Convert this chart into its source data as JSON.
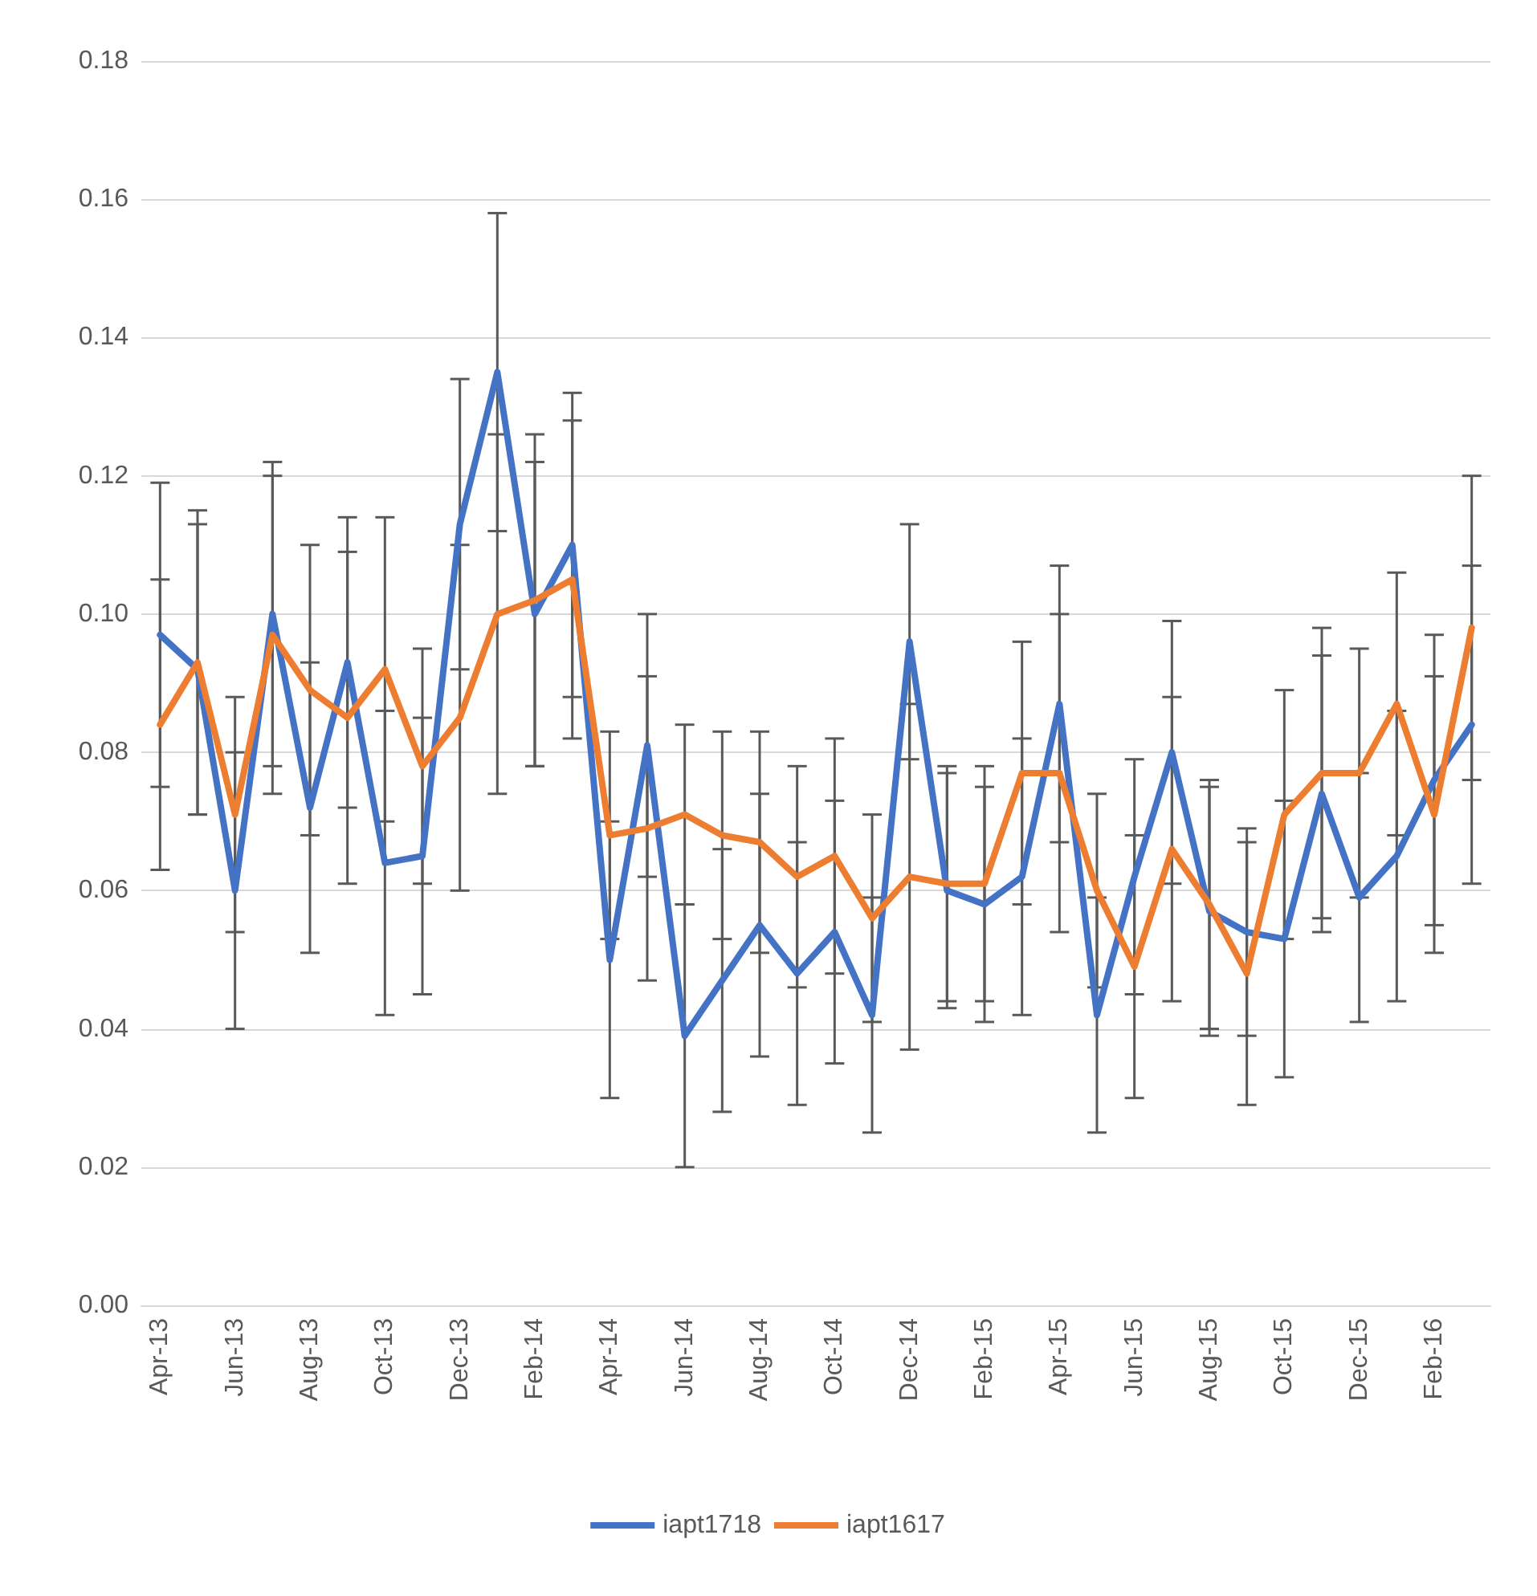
{
  "chart_data": {
    "type": "line",
    "categories": [
      "Apr-13",
      null,
      "Jun-13",
      null,
      "Aug-13",
      null,
      "Oct-13",
      null,
      "Dec-13",
      null,
      "Feb-14",
      null,
      "Apr-14",
      null,
      "Jun-14",
      null,
      "Aug-14",
      null,
      "Oct-14",
      null,
      "Dec-14",
      null,
      "Feb-15",
      null,
      "Apr-15",
      null,
      "Jun-15",
      null,
      "Aug-15",
      null,
      "Oct-15",
      null,
      "Dec-15",
      null,
      "Feb-16",
      null
    ],
    "series": [
      {
        "name": "iapt1718",
        "color": "#4472c4",
        "values": [
          0.097,
          0.092,
          0.06,
          0.1,
          0.072,
          0.093,
          0.064,
          0.065,
          0.113,
          0.135,
          0.1,
          0.11,
          0.05,
          0.081,
          0.039,
          0.047,
          0.055,
          0.048,
          0.054,
          0.042,
          0.096,
          0.06,
          0.058,
          0.062,
          0.087,
          0.042,
          0.062,
          0.08,
          0.057,
          0.054,
          0.053,
          0.074,
          0.059,
          0.065,
          0.076,
          0.084
        ],
        "errors": [
          0.022,
          0.021,
          0.02,
          0.022,
          0.021,
          0.021,
          0.022,
          0.02,
          0.021,
          0.023,
          0.022,
          0.022,
          0.02,
          0.019,
          0.019,
          0.019,
          0.019,
          0.019,
          0.019,
          0.017,
          0.017,
          0.017,
          0.017,
          0.02,
          0.02,
          0.017,
          0.017,
          0.019,
          0.018,
          0.015,
          0.02,
          0.02,
          0.018,
          0.021,
          0.021,
          0.023
        ]
      },
      {
        "name": "iapt1617",
        "color": "#ed7d31",
        "values": [
          0.084,
          0.093,
          0.071,
          0.097,
          0.089,
          0.085,
          0.092,
          0.078,
          0.085,
          0.1,
          0.102,
          0.105,
          0.068,
          0.069,
          0.071,
          0.068,
          0.067,
          0.062,
          0.065,
          0.056,
          0.062,
          0.061,
          0.061,
          0.077,
          0.077,
          0.06,
          0.049,
          0.066,
          0.058,
          0.048,
          0.071,
          0.077,
          0.077,
          0.087,
          0.071,
          0.098
        ],
        "errors": [
          0.021,
          0.022,
          0.017,
          0.023,
          0.021,
          0.024,
          0.022,
          0.017,
          0.025,
          0.026,
          0.024,
          0.023,
          0.015,
          0.022,
          0.013,
          0.015,
          0.016,
          0.016,
          0.017,
          0.015,
          0.025,
          0.017,
          0.017,
          0.019,
          0.023,
          0.014,
          0.019,
          0.022,
          0.018,
          0.019,
          0.018,
          0.021,
          0.018,
          0.019,
          0.02,
          0.022
        ]
      }
    ],
    "ylim": [
      0,
      0.18
    ],
    "yticks": [
      {
        "value": 0,
        "label": "0.00"
      },
      0.02,
      0.04,
      0.06,
      0.08,
      {
        "value": 0.1,
        "label": "0.10"
      },
      0.12,
      0.14,
      0.16,
      0.18
    ],
    "grid": "y",
    "legend": "bottom",
    "marker": "none",
    "line_style": "solid"
  }
}
